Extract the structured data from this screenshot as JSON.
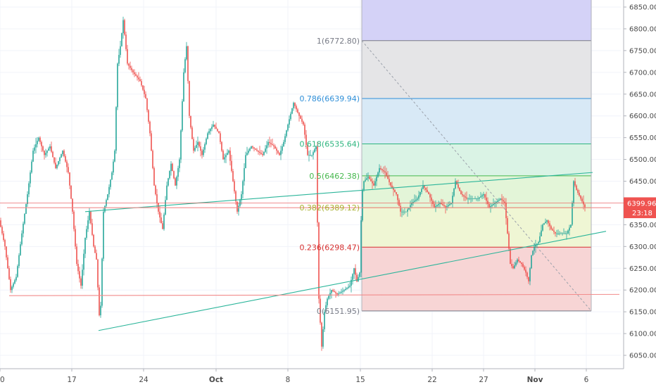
{
  "chart_data": {
    "type": "candlestick",
    "ylim": [
      6010,
      6875
    ],
    "y_ticks": [
      6050,
      6100,
      6150,
      6200,
      6250,
      6300,
      6350,
      6400,
      6450,
      6500,
      6550,
      6600,
      6650,
      6700,
      6750,
      6800,
      6850
    ],
    "y_tick_labels": [
      "6050.00",
      "6100.00",
      "6150.00",
      "6200.00",
      "6250.00",
      "6300.00",
      "6350.00",
      "6400.00",
      "6450.00",
      "6500.00",
      "6550.00",
      "6600.00",
      "6650.00",
      "6700.00",
      "6750.00",
      "6800.00",
      "6850.00"
    ],
    "x_ticks": [
      {
        "label": "0",
        "bar": 0,
        "bold": false
      },
      {
        "label": "17",
        "bar": 102,
        "bold": false
      },
      {
        "label": "24",
        "bar": 204,
        "bold": false
      },
      {
        "label": "Oct",
        "bar": 307,
        "bold": true
      },
      {
        "label": "8",
        "bar": 409,
        "bold": false
      },
      {
        "label": "15",
        "bar": 512,
        "bold": false
      },
      {
        "label": "22",
        "bar": 614,
        "bold": false
      },
      {
        "label": "27",
        "bar": 687,
        "bold": false
      },
      {
        "label": "Nov",
        "bar": 760,
        "bold": true
      },
      {
        "label": "6",
        "bar": 833,
        "bold": false
      }
    ],
    "price_path": [
      [
        0,
        6360
      ],
      [
        8,
        6300
      ],
      [
        16,
        6200
      ],
      [
        24,
        6230
      ],
      [
        32,
        6330
      ],
      [
        40,
        6420
      ],
      [
        48,
        6520
      ],
      [
        56,
        6550
      ],
      [
        64,
        6510
      ],
      [
        72,
        6530
      ],
      [
        80,
        6480
      ],
      [
        90,
        6520
      ],
      [
        98,
        6470
      ],
      [
        104,
        6380
      ],
      [
        110,
        6260
      ],
      [
        116,
        6210
      ],
      [
        122,
        6320
      ],
      [
        128,
        6380
      ],
      [
        134,
        6300
      ],
      [
        138,
        6270
      ],
      [
        143,
        6110
      ],
      [
        148,
        6380
      ],
      [
        154,
        6420
      ],
      [
        160,
        6470
      ],
      [
        164,
        6520
      ],
      [
        168,
        6720
      ],
      [
        172,
        6760
      ],
      [
        176,
        6820
      ],
      [
        182,
        6720
      ],
      [
        190,
        6700
      ],
      [
        200,
        6680
      ],
      [
        208,
        6640
      ],
      [
        214,
        6560
      ],
      [
        220,
        6440
      ],
      [
        226,
        6380
      ],
      [
        232,
        6340
      ],
      [
        238,
        6440
      ],
      [
        244,
        6490
      ],
      [
        250,
        6440
      ],
      [
        256,
        6500
      ],
      [
        262,
        6700
      ],
      [
        266,
        6760
      ],
      [
        270,
        6600
      ],
      [
        276,
        6520
      ],
      [
        282,
        6540
      ],
      [
        288,
        6510
      ],
      [
        296,
        6560
      ],
      [
        304,
        6580
      ],
      [
        312,
        6560
      ],
      [
        318,
        6500
      ],
      [
        326,
        6520
      ],
      [
        332,
        6450
      ],
      [
        338,
        6380
      ],
      [
        344,
        6420
      ],
      [
        350,
        6510
      ],
      [
        358,
        6530
      ],
      [
        366,
        6520
      ],
      [
        374,
        6510
      ],
      [
        382,
        6540
      ],
      [
        390,
        6530
      ],
      [
        398,
        6510
      ],
      [
        404,
        6540
      ],
      [
        410,
        6580
      ],
      [
        418,
        6630
      ],
      [
        426,
        6600
      ],
      [
        432,
        6580
      ],
      [
        438,
        6510
      ],
      [
        444,
        6510
      ],
      [
        450,
        6530
      ],
      [
        454,
        6180
      ],
      [
        458,
        6070
      ],
      [
        462,
        6150
      ],
      [
        466,
        6180
      ],
      [
        472,
        6200
      ],
      [
        480,
        6190
      ],
      [
        490,
        6200
      ],
      [
        498,
        6210
      ],
      [
        504,
        6250
      ],
      [
        508,
        6220
      ],
      [
        512,
        6240
      ],
      [
        515,
        6420
      ],
      [
        518,
        6450
      ],
      [
        524,
        6460
      ],
      [
        532,
        6440
      ],
      [
        540,
        6480
      ],
      [
        548,
        6470
      ],
      [
        556,
        6440
      ],
      [
        564,
        6420
      ],
      [
        570,
        6380
      ],
      [
        578,
        6380
      ],
      [
        586,
        6400
      ],
      [
        594,
        6410
      ],
      [
        602,
        6440
      ],
      [
        610,
        6420
      ],
      [
        618,
        6390
      ],
      [
        626,
        6400
      ],
      [
        634,
        6390
      ],
      [
        642,
        6400
      ],
      [
        648,
        6450
      ],
      [
        656,
        6420
      ],
      [
        664,
        6410
      ],
      [
        672,
        6410
      ],
      [
        680,
        6410
      ],
      [
        688,
        6420
      ],
      [
        696,
        6390
      ],
      [
        704,
        6400
      ],
      [
        712,
        6410
      ],
      [
        718,
        6400
      ],
      [
        722,
        6330
      ],
      [
        726,
        6260
      ],
      [
        730,
        6250
      ],
      [
        736,
        6270
      ],
      [
        742,
        6260
      ],
      [
        748,
        6240
      ],
      [
        752,
        6220
      ],
      [
        756,
        6280
      ],
      [
        760,
        6300
      ],
      [
        766,
        6310
      ],
      [
        772,
        6350
      ],
      [
        778,
        6360
      ],
      [
        784,
        6340
      ],
      [
        790,
        6330
      ],
      [
        798,
        6330
      ],
      [
        806,
        6330
      ],
      [
        812,
        6350
      ],
      [
        816,
        6450
      ],
      [
        820,
        6430
      ],
      [
        826,
        6410
      ],
      [
        832,
        6390
      ]
    ],
    "trend_lines": [
      {
        "name": "green-upper",
        "color": "#2bb59a",
        "from": [
          121,
          6380
        ],
        "to": [
          842,
          6470
        ]
      },
      {
        "name": "green-lower",
        "color": "#2bb59a",
        "from": [
          140,
          6107
        ],
        "to": [
          861,
          6335
        ]
      },
      {
        "name": "red-upper",
        "color": "#f28c8c",
        "from": [
          10,
          6389.12
        ],
        "to": [
          868,
          6389.12
        ]
      },
      {
        "name": "red-lower",
        "color": "#f28c8c",
        "from": [
          13,
          6187
        ],
        "to": [
          880,
          6190
        ]
      }
    ],
    "fib_retracement": {
      "start_bar": 514,
      "end_bar": 840,
      "levels": [
        {
          "label": "1(6772.80)",
          "value": 6772.8,
          "color": "#787b86",
          "fill": "#e4e4e6"
        },
        {
          "label": "0.786(6639.94)",
          "value": 6639.94,
          "color": "#2f8fd8",
          "fill": "#d6e8f6"
        },
        {
          "label": "0.618(6535.64)",
          "value": 6535.64,
          "color": "#2db57e",
          "fill": "#d8f2e4"
        },
        {
          "label": "0.5(6462.38)",
          "value": 6462.38,
          "color": "#45b84c",
          "fill": "#e2f4d6"
        },
        {
          "label": "0.382(6389.12)",
          "value": 6389.12,
          "color": "#a8b030",
          "fill": "#eef5d2"
        },
        {
          "label": "0.236(6298.47)",
          "value": 6298.47,
          "color": "#d63030",
          "fill": "#f7d3d3"
        },
        {
          "label": "0(6151.95)",
          "value": 6151.95,
          "color": "#787b86",
          "fill": null
        }
      ],
      "extension_top": {
        "value": 6875,
        "fill": "#d4d2f7",
        "color": "#8a86e8"
      }
    },
    "current_price": {
      "value": 6399.96,
      "label": "6399.96",
      "color": "#ef5350"
    },
    "countdown": {
      "label": "23:18",
      "value": 6378,
      "color": "#ef5350"
    },
    "colors": {
      "up": "#26a69a",
      "down": "#ef5350",
      "grid": "#f0f3fa",
      "axis": "#b0b3bb"
    }
  }
}
